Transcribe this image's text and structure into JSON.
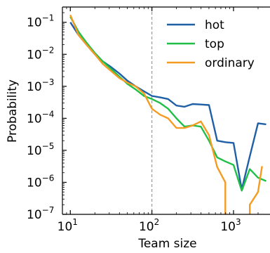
{
  "chart_data": {
    "type": "line",
    "title": "",
    "xlabel": "Team size",
    "ylabel": "Probability",
    "xscale": "log",
    "yscale": "log",
    "xlim": [
      8,
      2800
    ],
    "ylim": [
      1e-07,
      0.3
    ],
    "x_ticks": [
      {
        "value": 10,
        "base": "10",
        "exp": "1"
      },
      {
        "value": 100,
        "base": "10",
        "exp": "2"
      },
      {
        "value": 1000,
        "base": "10",
        "exp": "3"
      }
    ],
    "y_ticks": [
      {
        "value": 0.1,
        "base": "10",
        "exp": "−1"
      },
      {
        "value": 0.01,
        "base": "10",
        "exp": "−2"
      },
      {
        "value": 0.001,
        "base": "10",
        "exp": "−3"
      },
      {
        "value": 0.0001,
        "base": "10",
        "exp": "−4"
      },
      {
        "value": 1e-05,
        "base": "10",
        "exp": "−5"
      },
      {
        "value": 1e-06,
        "base": "10",
        "exp": "−6"
      },
      {
        "value": 1e-07,
        "base": "10",
        "exp": "−7"
      }
    ],
    "reference_line_x": 100,
    "legend_position": "upper-right",
    "series": [
      {
        "name": "hot",
        "color": "#1f5fa6",
        "points": [
          [
            10,
            0.1
          ],
          [
            12.6,
            0.04
          ],
          [
            15.8,
            0.02
          ],
          [
            20,
            0.01
          ],
          [
            25,
            0.006
          ],
          [
            31.6,
            0.004
          ],
          [
            40,
            0.0025
          ],
          [
            50,
            0.0015
          ],
          [
            63,
            0.001
          ],
          [
            80,
            0.0007
          ],
          [
            100,
            0.0005
          ],
          [
            126,
            0.00045
          ],
          [
            158,
            0.0004
          ],
          [
            200,
            0.00025
          ],
          [
            251,
            0.00023
          ],
          [
            316,
            0.00028
          ],
          [
            398,
            0.00027
          ],
          [
            501,
            0.00026
          ],
          [
            631,
            2e-05
          ],
          [
            794,
            1.8e-05
          ],
          [
            1000,
            1.7e-05
          ],
          [
            1260,
            6e-07
          ],
          [
            1585,
            6.5e-06
          ],
          [
            1995,
            7e-05
          ],
          [
            2512,
            6.5e-05
          ]
        ]
      },
      {
        "name": "top",
        "color": "#1fbf48",
        "points": [
          [
            10,
            0.15
          ],
          [
            12.6,
            0.05
          ],
          [
            15.8,
            0.023
          ],
          [
            20,
            0.011
          ],
          [
            25,
            0.006
          ],
          [
            31.6,
            0.0035
          ],
          [
            40,
            0.002
          ],
          [
            50,
            0.0012
          ],
          [
            63,
            0.0008
          ],
          [
            80,
            0.0005
          ],
          [
            100,
            0.0004
          ],
          [
            126,
            0.0003
          ],
          [
            158,
            0.0002
          ],
          [
            200,
            0.0001
          ],
          [
            251,
            5.5e-05
          ],
          [
            316,
            6e-05
          ],
          [
            398,
            5.5e-05
          ],
          [
            501,
            2e-05
          ],
          [
            631,
            6e-06
          ],
          [
            794,
            4.5e-06
          ],
          [
            1000,
            3.5e-06
          ],
          [
            1260,
            5.5e-07
          ],
          [
            1585,
            2.6e-06
          ],
          [
            1995,
            1.4e-06
          ],
          [
            2512,
            1.1e-06
          ]
        ]
      },
      {
        "name": "ordinary",
        "color": "#f59b22",
        "points": [
          [
            10,
            0.17
          ],
          [
            12.6,
            0.04
          ],
          [
            15.8,
            0.02
          ],
          [
            20,
            0.01
          ],
          [
            25,
            0.005
          ],
          [
            31.6,
            0.003
          ],
          [
            40,
            0.0018
          ],
          [
            50,
            0.0013
          ],
          [
            63,
            0.001
          ],
          [
            80,
            0.0006
          ],
          [
            100,
            0.0002
          ],
          [
            126,
            0.00013
          ],
          [
            158,
            0.0001
          ],
          [
            200,
            5e-05
          ],
          [
            251,
            5e-05
          ],
          [
            316,
            6e-05
          ],
          [
            398,
            8e-05
          ],
          [
            501,
            3e-05
          ],
          [
            631,
            3e-06
          ],
          [
            794,
            1e-06
          ],
          [
            794,
            1e-07
          ],
          [
            null,
            null
          ],
          [
            1585,
            1e-07
          ],
          [
            1585,
            2e-07
          ],
          [
            1995,
            5e-07
          ],
          [
            2239,
            3.2e-06
          ]
        ]
      }
    ]
  }
}
